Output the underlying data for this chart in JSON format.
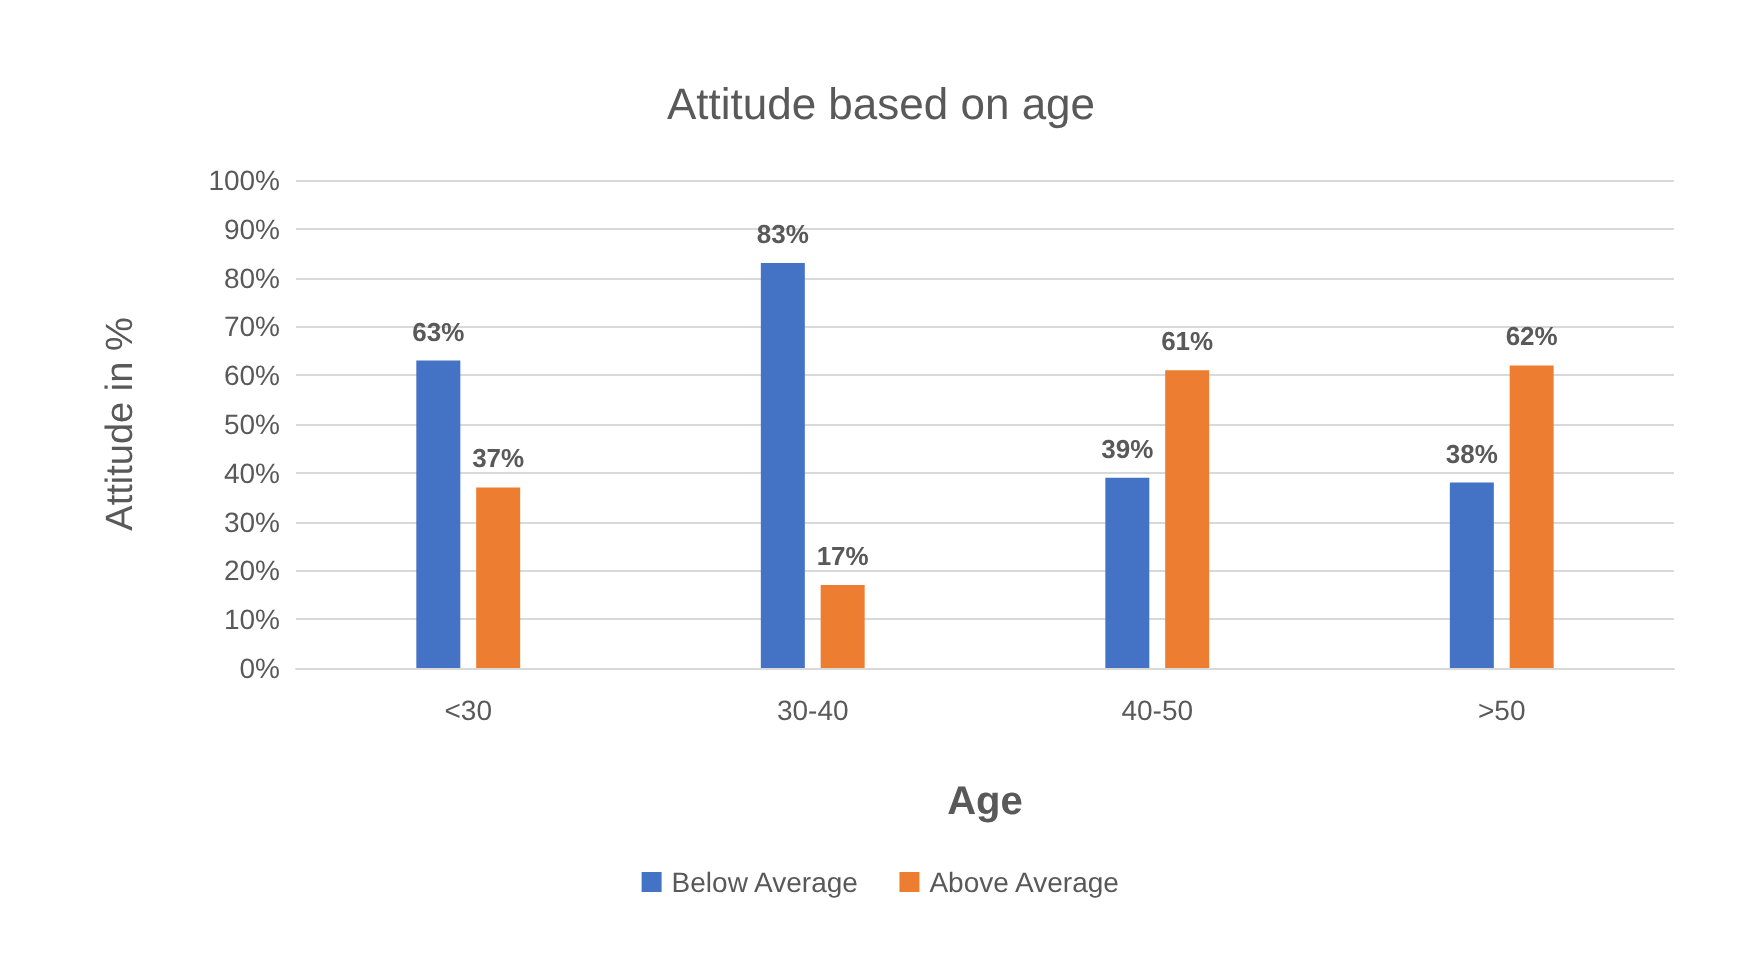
{
  "chart_data": {
    "type": "bar",
    "title": "Attitude based on age",
    "xlabel": "Age",
    "ylabel": "Attitude in %",
    "categories": [
      "<30",
      "30-40",
      "40-50",
      ">50"
    ],
    "series": [
      {
        "name": "Below Average",
        "color": "#4472c4",
        "values": [
          63,
          83,
          39,
          38
        ],
        "value_labels": [
          "63%",
          "83%",
          "39%",
          "38%"
        ]
      },
      {
        "name": "Above Average",
        "color": "#ed7d31",
        "values": [
          37,
          17,
          61,
          62
        ],
        "value_labels": [
          "37%",
          "17%",
          "61%",
          "62%"
        ]
      }
    ],
    "ylim": [
      0,
      100
    ],
    "yticks": [
      {
        "value": 0,
        "label": "0%"
      },
      {
        "value": 10,
        "label": "10%"
      },
      {
        "value": 20,
        "label": "20%"
      },
      {
        "value": 30,
        "label": "30%"
      },
      {
        "value": 40,
        "label": "40%"
      },
      {
        "value": 50,
        "label": "50%"
      },
      {
        "value": 60,
        "label": "60%"
      },
      {
        "value": 70,
        "label": "70%"
      },
      {
        "value": 80,
        "label": "80%"
      },
      {
        "value": 90,
        "label": "90%"
      },
      {
        "value": 100,
        "label": "100%"
      }
    ],
    "grid": "y",
    "legend": "bottom"
  }
}
